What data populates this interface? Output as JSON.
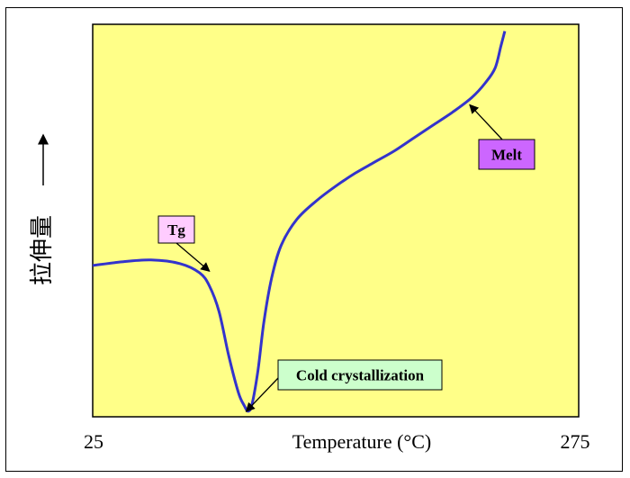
{
  "chart_data": {
    "type": "line",
    "title": "",
    "xlabel": "Temperature (°C)",
    "ylabel": "拉伸量",
    "x_tick_labels": [
      "25",
      "275"
    ],
    "xlim": [
      25,
      275
    ],
    "ylim": [
      0,
      100
    ],
    "grid": false,
    "colors": {
      "plot_background": "#FFFF88",
      "line": "#3333CC",
      "tg_box": "#FFCCFF",
      "cold_box": "#CCFFCC",
      "melt_box": "#CC66FF"
    },
    "series": [
      {
        "x": [
          25,
          40,
          55,
          70,
          80,
          85,
          90,
          95,
          100,
          103,
          105,
          107,
          110,
          113,
          117,
          122,
          130,
          140,
          150,
          160,
          170,
          180,
          190,
          200,
          210,
          220,
          227,
          232,
          235,
          237
        ],
        "y": [
          40.5,
          41.5,
          42,
          41,
          38.5,
          35,
          28,
          16,
          6,
          2.5,
          1,
          3,
          12,
          25,
          37,
          46,
          53,
          58,
          62,
          65.5,
          68.5,
          71.5,
          75,
          78.5,
          82,
          86,
          90,
          94,
          100,
          104
        ]
      }
    ],
    "annotations": [
      {
        "label": "Tg",
        "x": 85,
        "y": 39
      },
      {
        "label": "Cold crystallization",
        "x": 104,
        "y": 1
      },
      {
        "label": "Melt",
        "x": 219,
        "y": 84
      }
    ]
  }
}
